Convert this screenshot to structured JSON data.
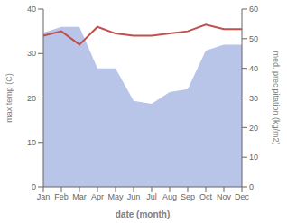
{
  "chart_data": {
    "type": "line",
    "xlabel": "date (month)",
    "ylabel": "max temp (C)",
    "y2label": "med. precipitation (kg/m2)",
    "categories": [
      "Jan",
      "Feb",
      "Mar",
      "Apr",
      "May",
      "Jun",
      "Jul",
      "Aug",
      "Sep",
      "Oct",
      "Nov",
      "Dec"
    ],
    "series": [
      {
        "type": "area",
        "axis": "y2",
        "color": "#b8c4e8",
        "values": [
          52,
          54,
          54,
          40,
          40,
          29,
          28,
          32,
          33,
          46,
          48,
          48
        ]
      },
      {
        "type": "line",
        "color": "#c0504d",
        "values": [
          34.0,
          35.0,
          32.0,
          36.0,
          34.5,
          34.0,
          34.0,
          34.5,
          35.0,
          36.5,
          35.5,
          35.5
        ]
      }
    ],
    "ylim": [
      0,
      40
    ],
    "yticks": [
      0,
      10,
      20,
      30,
      40
    ],
    "y2lim": [
      0,
      60
    ],
    "y2ticks": [
      0,
      10,
      20,
      30,
      40,
      50,
      60
    ],
    "grid": false
  }
}
